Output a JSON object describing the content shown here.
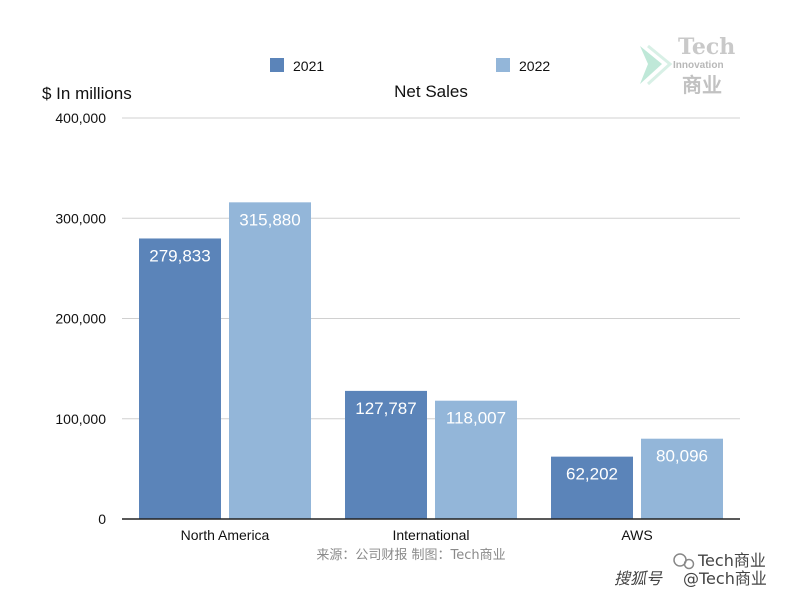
{
  "chart_data": {
    "type": "bar",
    "title": "Net Sales",
    "ylabel": "$ In millions",
    "xlabel": "",
    "categories": [
      "North America",
      "International",
      "AWS"
    ],
    "series": [
      {
        "name": "2021",
        "values": [
          279833,
          127787,
          62202
        ],
        "labels": [
          "279,833",
          "127,787",
          "62,202"
        ],
        "color": "#5b84b9"
      },
      {
        "name": "2022",
        "values": [
          315880,
          118007,
          80096
        ],
        "labels": [
          "315,880",
          "118,007",
          "80,096"
        ],
        "color": "#93b6d9"
      }
    ],
    "ylim": [
      0,
      400000
    ],
    "yticks": [
      0,
      100000,
      200000,
      300000,
      400000
    ],
    "ytick_labels": [
      "0",
      "100,000",
      "200,000",
      "300,000",
      "400,000"
    ],
    "grid": true,
    "legend_position": "top-center"
  },
  "source_note": "来源：公司财报 制图：Tech商业",
  "watermark": {
    "title": "Tech",
    "subtitle": "Innovation",
    "chinese": "商业",
    "bottom_line1": "Tech商业",
    "bottom_line2": "@Tech商业",
    "bottom_prefix": "搜狐号"
  },
  "colors": {
    "grid": "#d0d0d0",
    "axis": "#222222"
  }
}
